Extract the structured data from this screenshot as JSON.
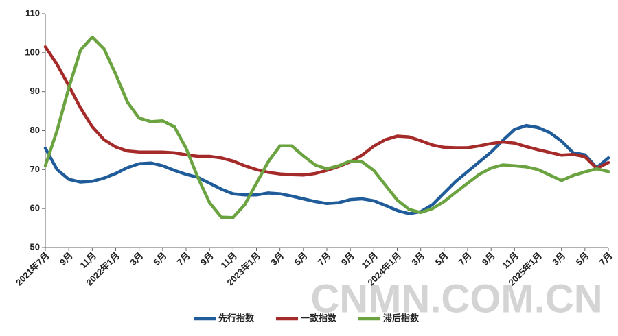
{
  "chart_data": {
    "type": "line",
    "categories": [
      "2021年7月",
      null,
      "9月",
      null,
      "11月",
      null,
      "2022年1月",
      null,
      "3月",
      null,
      "5月",
      null,
      "7月",
      null,
      "9月",
      null,
      "11月",
      null,
      "2023年1月",
      null,
      "3月",
      null,
      "5月",
      null,
      "7月",
      null,
      "9月",
      null,
      "11月",
      null,
      "2024年1月",
      null,
      "3月",
      null,
      "5月",
      null,
      "7月",
      null,
      "9月",
      null,
      "11月",
      null,
      "2025年1月",
      null,
      "3月",
      null,
      "5月",
      null,
      "7月"
    ],
    "series": [
      {
        "name": "先行指数",
        "color": "#1f5c99",
        "values": [
          75.5,
          70,
          67.5,
          66.8,
          67,
          67.8,
          69,
          70.5,
          71.5,
          71.7,
          71,
          69.8,
          68.8,
          68,
          66.5,
          65,
          63.8,
          63.5,
          63.5,
          64,
          63.8,
          63.2,
          62.5,
          61.8,
          61.3,
          61.5,
          62.3,
          62.5,
          62,
          60.8,
          59.5,
          58.7,
          59.2,
          61,
          64,
          67,
          69.5,
          72,
          74.5,
          77.5,
          80.3,
          81.3,
          80.8,
          79.5,
          77.3,
          74.3,
          73.8,
          70.5,
          73
        ]
      },
      {
        "name": "一致指数",
        "color": "#a52a2a",
        "values": [
          101.5,
          97,
          91.5,
          85.8,
          81,
          77.7,
          75.8,
          74.8,
          74.5,
          74.5,
          74.5,
          74.3,
          73.8,
          73.4,
          73.4,
          73,
          72.2,
          71,
          70,
          69.3,
          68.9,
          68.7,
          68.6,
          69,
          69.8,
          70.8,
          72,
          73.7,
          76,
          77.7,
          78.6,
          78.4,
          77.4,
          76.3,
          75.7,
          75.6,
          75.6,
          76.1,
          76.7,
          77.1,
          76.8,
          75.9,
          75.1,
          74.4,
          73.7,
          73.9,
          73.3,
          70.3,
          71.8
        ]
      },
      {
        "name": "滞后指数",
        "color": "#6aa340",
        "values": [
          71,
          80,
          91,
          100.7,
          104,
          101,
          94.5,
          87.3,
          83.2,
          82.3,
          82.5,
          81,
          75.5,
          68,
          61.5,
          57.8,
          57.7,
          61,
          66.5,
          72,
          76.1,
          76.1,
          73.5,
          71.2,
          70.2,
          71,
          72.2,
          72,
          69.8,
          66,
          62.2,
          59.8,
          59,
          60,
          61.8,
          64.2,
          66.5,
          68.8,
          70.4,
          71.2,
          71,
          70.7,
          70,
          68.6,
          67.2,
          68.5,
          69.4,
          70.2,
          69.5
        ]
      }
    ],
    "ylim": [
      50,
      110
    ],
    "yticks": [
      50,
      60,
      70,
      80,
      90,
      100,
      110
    ],
    "watermark": "CNMN.COM.CN"
  }
}
